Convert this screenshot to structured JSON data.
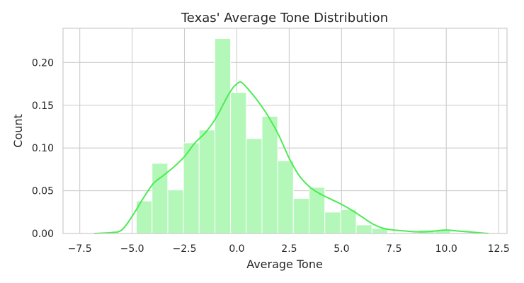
{
  "chart_data": {
    "type": "bar",
    "title": "Texas' Average Tone Distribution",
    "xlabel": "Average Tone",
    "ylabel": "Count",
    "xlim": [
      -8.3,
      12.9
    ],
    "ylim": [
      0,
      0.24
    ],
    "x_ticks": [
      -7.5,
      -5.0,
      -2.5,
      0.0,
      2.5,
      5.0,
      7.5,
      10.0,
      12.5
    ],
    "x_tick_labels": [
      "−7.5",
      "−5.0",
      "−2.5",
      "0.0",
      "2.5",
      "5.0",
      "7.5",
      "10.0",
      "12.5"
    ],
    "y_ticks": [
      0.0,
      0.05,
      0.1,
      0.15,
      0.2
    ],
    "y_tick_labels": [
      "0.00",
      "0.05",
      "0.10",
      "0.15",
      "0.20"
    ],
    "grid": true,
    "colors": {
      "bar_fill": "#b3f8b9",
      "kde_line": "#4ceb53",
      "grid": "#cccccc",
      "spine": "#cccccc",
      "text": "#262626"
    },
    "histogram": {
      "bin_width": 0.75,
      "bins": [
        {
          "start": -4.8,
          "end": -4.05,
          "value": 0.038
        },
        {
          "start": -4.05,
          "end": -3.3,
          "value": 0.082
        },
        {
          "start": -3.3,
          "end": -2.55,
          "value": 0.051
        },
        {
          "start": -2.55,
          "end": -1.8,
          "value": 0.106
        },
        {
          "start": -1.8,
          "end": -1.05,
          "value": 0.121
        },
        {
          "start": -1.05,
          "end": -0.3,
          "value": 0.228
        },
        {
          "start": -0.3,
          "end": 0.45,
          "value": 0.165
        },
        {
          "start": 0.45,
          "end": 1.2,
          "value": 0.111
        },
        {
          "start": 1.2,
          "end": 1.95,
          "value": 0.137
        },
        {
          "start": 1.95,
          "end": 2.7,
          "value": 0.085
        },
        {
          "start": 2.7,
          "end": 3.45,
          "value": 0.041
        },
        {
          "start": 3.45,
          "end": 4.2,
          "value": 0.054
        },
        {
          "start": 4.2,
          "end": 4.95,
          "value": 0.025
        },
        {
          "start": 4.95,
          "end": 5.7,
          "value": 0.028
        },
        {
          "start": 5.7,
          "end": 6.45,
          "value": 0.01
        },
        {
          "start": 6.45,
          "end": 7.2,
          "value": 0.006
        },
        {
          "start": 7.2,
          "end": 7.95,
          "value": 0.0
        },
        {
          "start": 7.95,
          "end": 8.7,
          "value": 0.0
        },
        {
          "start": 8.7,
          "end": 9.45,
          "value": 0.004
        },
        {
          "start": 9.45,
          "end": 10.2,
          "value": 0.004
        }
      ]
    },
    "kde": {
      "x": [
        -6.8,
        -6.0,
        -5.5,
        -5.0,
        -4.5,
        -4.0,
        -3.5,
        -3.0,
        -2.5,
        -2.0,
        -1.5,
        -1.0,
        -0.5,
        -0.2,
        0.0,
        0.2,
        0.5,
        1.0,
        1.5,
        2.0,
        2.5,
        3.0,
        3.5,
        4.0,
        4.5,
        5.0,
        5.5,
        6.0,
        6.5,
        7.0,
        7.5,
        8.0,
        8.5,
        9.0,
        9.5,
        10.0,
        10.5,
        11.0,
        11.5,
        12.0
      ],
      "y": [
        0.0,
        0.001,
        0.004,
        0.02,
        0.04,
        0.058,
        0.068,
        0.078,
        0.09,
        0.106,
        0.118,
        0.135,
        0.158,
        0.17,
        0.175,
        0.177,
        0.17,
        0.155,
        0.137,
        0.115,
        0.088,
        0.067,
        0.054,
        0.046,
        0.04,
        0.034,
        0.027,
        0.019,
        0.011,
        0.006,
        0.004,
        0.003,
        0.002,
        0.002,
        0.003,
        0.004,
        0.003,
        0.002,
        0.001,
        0.0
      ]
    }
  }
}
